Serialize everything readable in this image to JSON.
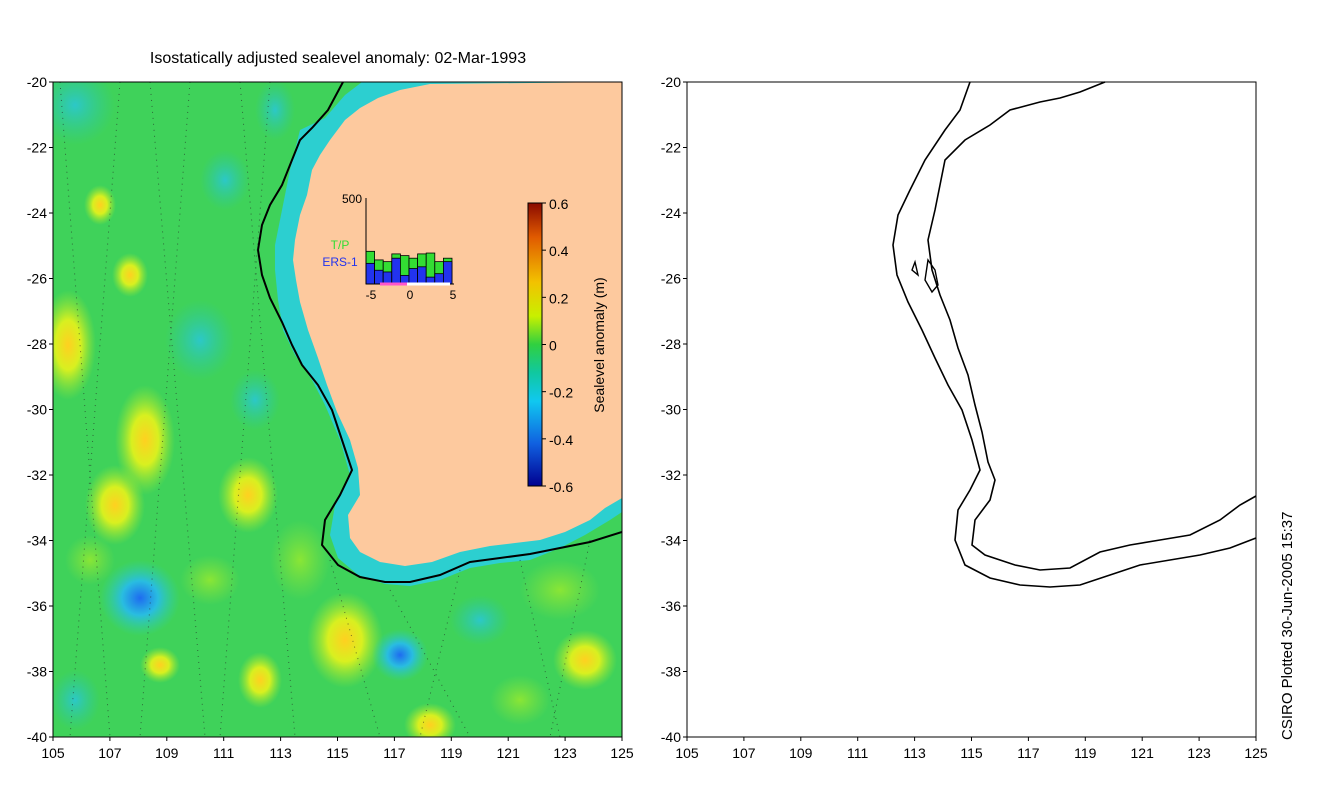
{
  "title": "Isostatically adjusted sealevel anomaly: 02-Mar-1993",
  "footer": "CSIRO Plotted 30-Jun-2005 15:37",
  "map": {
    "lon_ticks": [
      "105",
      "107",
      "109",
      "111",
      "113",
      "115",
      "117",
      "119",
      "121",
      "123",
      "125"
    ],
    "lat_ticks": [
      "-20",
      "-22",
      "-24",
      "-26",
      "-28",
      "-30",
      "-32",
      "-34",
      "-36",
      "-38",
      "-40"
    ],
    "xlim": [
      105,
      125
    ],
    "ylim": [
      -40,
      -20
    ],
    "land_color": "#fdc99e",
    "ocean_color": "#3fd25a"
  },
  "colorbar": {
    "label": "Sealevel anomaly (m)",
    "ticks": [
      "0.6",
      "0.4",
      "0.2",
      "0",
      "-0.2",
      "-0.4",
      "-0.6"
    ],
    "range": [
      -0.6,
      0.6
    ]
  },
  "inset": {
    "ymax_label": "500",
    "x_ticks": [
      "-5",
      "0",
      "5"
    ],
    "legend": [
      {
        "label": "T/P",
        "color": "#33dd33"
      },
      {
        "label": "ERS-1",
        "color": "#2233ee"
      }
    ],
    "days": [
      -5,
      -4,
      -3,
      -2,
      -1,
      0,
      1,
      2,
      3,
      4
    ],
    "tp_values": [
      190,
      140,
      130,
      175,
      165,
      150,
      175,
      180,
      130,
      150
    ],
    "ers_values": [
      120,
      80,
      70,
      150,
      50,
      90,
      100,
      40,
      60,
      130
    ]
  },
  "chart_data": {
    "type": "bar",
    "categories": [
      "-5",
      "-4",
      "-3",
      "-2",
      "-1",
      "0",
      "1",
      "2",
      "3",
      "4"
    ],
    "series": [
      {
        "name": "T/P",
        "values": [
          190,
          140,
          130,
          175,
          165,
          150,
          175,
          180,
          130,
          150
        ]
      },
      {
        "name": "ERS-1",
        "values": [
          120,
          80,
          70,
          150,
          50,
          90,
          100,
          40,
          60,
          130
        ]
      }
    ],
    "ylim": [
      0,
      500
    ]
  }
}
